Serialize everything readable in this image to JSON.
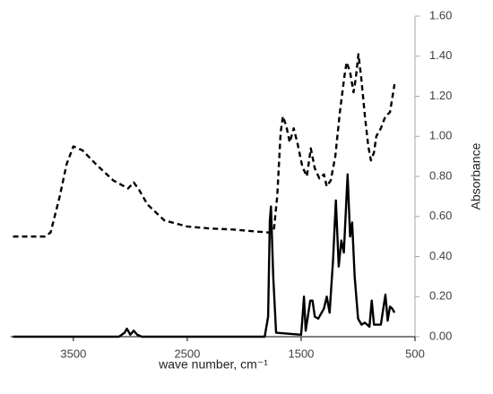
{
  "chart_data": {
    "type": "line",
    "x_label": "wave number, cm⁻¹",
    "y_label": "Absorbance",
    "xlim": [
      4050,
      500
    ],
    "xticks": [
      3500,
      2500,
      1500,
      500
    ],
    "ylim": [
      0,
      1.6
    ],
    "yticks": [
      {
        "value": 0,
        "label": "0.00"
      },
      {
        "value": 0.2,
        "label": "0.20"
      },
      {
        "value": 0.4,
        "label": "0.40"
      },
      {
        "value": 0.6,
        "label": "0.60"
      },
      {
        "value": 0.8,
        "label": "0.80"
      },
      {
        "value": 1.0,
        "label": "1.00"
      },
      {
        "value": 1.2,
        "label": "1.20"
      },
      {
        "value": 1.4,
        "label": "1.40"
      },
      {
        "value": 1.6,
        "label": "1.60"
      }
    ],
    "y_axis_side": "right",
    "series": [
      {
        "color": "#000000",
        "style": "dashed",
        "x": [
          4030,
          3750,
          3700,
          3620,
          3560,
          3500,
          3420,
          3300,
          3150,
          3020,
          2970,
          2920,
          2850,
          2700,
          2500,
          2300,
          2100,
          1900,
          1780,
          1740,
          1710,
          1680,
          1660,
          1630,
          1600,
          1565,
          1530,
          1490,
          1450,
          1415,
          1380,
          1340,
          1300,
          1275,
          1240,
          1200,
          1160,
          1120,
          1100,
          1070,
          1040,
          1020,
          997,
          970,
          940,
          910,
          887,
          860,
          840,
          800,
          760,
          720,
          680
        ],
        "values": [
          0.5,
          0.5,
          0.52,
          0.7,
          0.86,
          0.95,
          0.93,
          0.86,
          0.78,
          0.74,
          0.77,
          0.73,
          0.66,
          0.58,
          0.55,
          0.54,
          0.535,
          0.525,
          0.52,
          0.53,
          0.7,
          1.02,
          1.1,
          1.05,
          0.97,
          1.04,
          0.96,
          0.85,
          0.8,
          0.94,
          0.84,
          0.79,
          0.81,
          0.75,
          0.78,
          0.9,
          1.12,
          1.3,
          1.37,
          1.32,
          1.22,
          1.29,
          1.41,
          1.28,
          1.1,
          0.95,
          0.88,
          0.92,
          1.0,
          1.04,
          1.1,
          1.12,
          1.26
        ]
      },
      {
        "color": "#000000",
        "style": "solid",
        "x": [
          4030,
          3100,
          3050,
          3030,
          3000,
          2970,
          2940,
          2900,
          1820,
          1790,
          1775,
          1765,
          1745,
          1720,
          1500,
          1485,
          1475,
          1460,
          1420,
          1400,
          1380,
          1350,
          1300,
          1275,
          1250,
          1220,
          1195,
          1170,
          1147,
          1125,
          1092,
          1070,
          1052,
          1030,
          1000,
          970,
          940,
          900,
          880,
          860,
          800,
          760,
          740,
          720,
          700,
          680
        ],
        "values": [
          0,
          0.0,
          0.02,
          0.04,
          0.01,
          0.03,
          0.01,
          0.0,
          0.0,
          0.1,
          0.58,
          0.65,
          0.3,
          0.02,
          0.01,
          0.12,
          0.2,
          0.03,
          0.18,
          0.18,
          0.1,
          0.09,
          0.14,
          0.2,
          0.12,
          0.38,
          0.68,
          0.35,
          0.48,
          0.42,
          0.81,
          0.5,
          0.57,
          0.3,
          0.09,
          0.06,
          0.07,
          0.05,
          0.18,
          0.06,
          0.06,
          0.21,
          0.08,
          0.15,
          0.14,
          0.12
        ]
      }
    ]
  }
}
